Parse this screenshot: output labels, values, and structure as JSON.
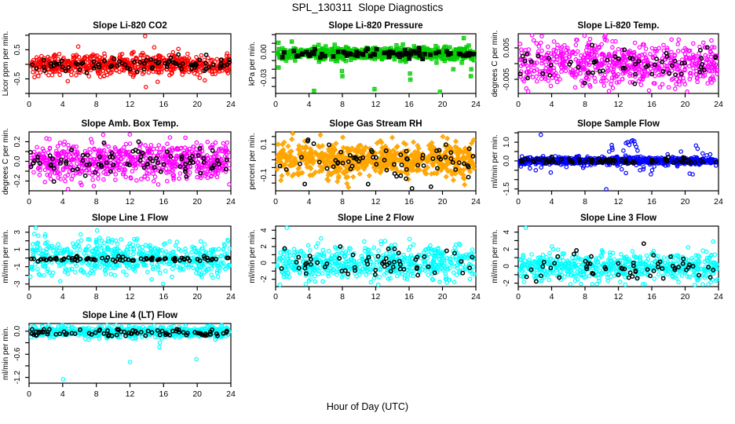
{
  "page": {
    "title": "SPL_130311  Slope Diagnostics",
    "xlabel": "Hour of Day (UTC)"
  },
  "axes": {
    "x_range": [
      0,
      24
    ],
    "x_ticks": [
      0,
      4,
      8,
      12,
      16,
      20,
      24
    ],
    "x_tick_labels": [
      "0",
      "4",
      "8",
      "12",
      "16",
      "20",
      "24"
    ]
  },
  "colors": {
    "background": "#ffffff",
    "axis": "#000000",
    "red": "#FF0000",
    "green": "#00CC00",
    "magenta": "#FF00FF",
    "orange": "#FFA500",
    "blue": "#0000FF",
    "cyan": "#00FFFF",
    "black": "#000000"
  },
  "chart_data": [
    {
      "id": "li820-co2",
      "type": "scatter",
      "grid": {
        "row": 0,
        "col": 0
      },
      "title": "Slope Li-820 CO2",
      "ylabel": "Licor ppm per min.",
      "x_range": [
        0,
        24
      ],
      "ylim": [
        -1.0,
        1.05
      ],
      "yticks": [
        -1,
        -0.5,
        0,
        0.5,
        1
      ],
      "ytick_labels": [
        {
          "v": 0.5,
          "t": "0.5"
        },
        {
          "v": -0.5,
          "t": "-0.5"
        }
      ],
      "series": [
        {
          "name": "primary",
          "color": "#FF0000",
          "marker": "open-circle",
          "n": 660,
          "mean": 0,
          "sd": 0.18,
          "seed": 101,
          "outliers": [
            [
              13.8,
              0.97
            ],
            [
              13.9,
              -0.78
            ],
            [
              15.3,
              -0.6
            ],
            [
              20.9,
              -0.55
            ],
            [
              4.6,
              -0.58
            ]
          ]
        },
        {
          "name": "overlay",
          "color": "#000000",
          "marker": "open-circle",
          "n": 85,
          "mean": 0,
          "sd": 0.12,
          "seed": 102,
          "outliers": []
        }
      ]
    },
    {
      "id": "li820-pressure",
      "type": "scatter",
      "grid": {
        "row": 0,
        "col": 1
      },
      "title": "Slope Li-820 Pressure",
      "ylabel": "kPa per min.",
      "x_range": [
        0,
        24
      ],
      "ylim": [
        -0.048,
        0.021
      ],
      "yticks": [
        -0.04,
        -0.03,
        -0.02,
        -0.01,
        0,
        0.01,
        0.02
      ],
      "ytick_labels": [
        {
          "v": 0,
          "t": "0.00"
        },
        {
          "v": -0.03,
          "t": "-0.03"
        }
      ],
      "series": [
        {
          "name": "primary",
          "color": "#00CC00",
          "marker": "square-plus",
          "n": 660,
          "mean": -0.002,
          "sd": 0.0035,
          "seed": 201,
          "outliers": [
            [
              0.35,
              -0.018
            ],
            [
              4.6,
              -0.045
            ],
            [
              7.95,
              -0.022
            ],
            [
              8.0,
              -0.028
            ],
            [
              11.85,
              -0.043
            ],
            [
              16.1,
              -0.025
            ],
            [
              16.15,
              -0.032
            ],
            [
              19.7,
              -0.046
            ],
            [
              21.3,
              -0.02
            ],
            [
              22.55,
              0.016
            ],
            [
              23.4,
              -0.028
            ],
            [
              23.45,
              -0.02
            ]
          ]
        },
        {
          "name": "overlay",
          "color": "#000000",
          "marker": "square-plus",
          "n": 85,
          "mean": -0.002,
          "sd": 0.0027,
          "seed": 202,
          "outliers": []
        }
      ]
    },
    {
      "id": "li820-temp",
      "type": "scatter",
      "grid": {
        "row": 0,
        "col": 2
      },
      "title": "Slope Li-820 Temp.",
      "ylabel": "degrees C per min.",
      "x_range": [
        0,
        24
      ],
      "ylim": [
        -0.0095,
        0.0095
      ],
      "yticks": [
        -0.005,
        0,
        0.005
      ],
      "ytick_labels": [
        {
          "v": 0.005,
          "t": "0.005"
        },
        {
          "v": -0.005,
          "t": "-0.005"
        }
      ],
      "series": [
        {
          "name": "primary",
          "color": "#FF00FF",
          "marker": "open-circle",
          "n": 660,
          "mean": 0,
          "sd": 0.0035,
          "seed": 301,
          "outliers": []
        },
        {
          "name": "overlay",
          "color": "#000000",
          "marker": "open-circle",
          "n": 60,
          "mean": 0,
          "sd": 0.003,
          "seed": 302,
          "outliers": []
        }
      ]
    },
    {
      "id": "amb-box-temp",
      "type": "scatter",
      "grid": {
        "row": 1,
        "col": 0
      },
      "title": "Slope Amb. Box Temp.",
      "ylabel": "degrees C per min.",
      "x_range": [
        0,
        24
      ],
      "ylim": [
        -0.3,
        0.3
      ],
      "yticks": [
        -0.2,
        -0.1,
        0,
        0.1,
        0.2
      ],
      "ytick_labels": [
        {
          "v": 0.2,
          "t": "0.2"
        },
        {
          "v": 0,
          "t": "0.0"
        },
        {
          "v": -0.2,
          "t": "-0.2"
        }
      ],
      "series": [
        {
          "name": "primary",
          "color": "#FF00FF",
          "marker": "open-circle",
          "n": 660,
          "mean": 0,
          "sd": 0.095,
          "seed": 401,
          "outliers": []
        },
        {
          "name": "overlay",
          "color": "#000000",
          "marker": "open-circle",
          "n": 85,
          "mean": 0,
          "sd": 0.085,
          "seed": 402,
          "outliers": []
        }
      ]
    },
    {
      "id": "gas-stream-rh",
      "type": "scatter",
      "grid": {
        "row": 1,
        "col": 1
      },
      "title": "Slope Gas Stream RH",
      "ylabel": "percent per min.",
      "x_range": [
        0,
        24
      ],
      "ylim": [
        -0.2,
        0.18
      ],
      "yticks": [
        -0.15,
        -0.1,
        -0.05,
        0,
        0.05,
        0.1,
        0.15
      ],
      "ytick_labels": [
        {
          "v": 0.1,
          "t": "0.1"
        },
        {
          "v": -0.1,
          "t": "-0.1"
        }
      ],
      "series": [
        {
          "name": "primary",
          "color": "#FFA500",
          "marker": "diamond-plus",
          "n": 640,
          "mean": 0,
          "sd": 0.055,
          "seed": 501,
          "outliers": []
        },
        {
          "name": "overlay",
          "color": "#000000",
          "marker": "open-circle",
          "n": 70,
          "mean": 0,
          "sd": 0.06,
          "seed": 502,
          "outliers": [
            [
              16.35,
              -0.185
            ],
            [
              3.85,
              0.12
            ],
            [
              3.9,
              0.13
            ]
          ]
        }
      ]
    },
    {
      "id": "sample-flow",
      "type": "scatter",
      "grid": {
        "row": 1,
        "col": 2
      },
      "title": "Slope Sample Flow",
      "ylabel": "ml/min per min.",
      "x_range": [
        0,
        24
      ],
      "ylim": [
        -1.6,
        1.55
      ],
      "yticks": [
        -1.5,
        -1,
        -0.5,
        0,
        0.5,
        1,
        1.5
      ],
      "ytick_labels": [
        {
          "v": 1,
          "t": "1.0"
        },
        {
          "v": 0,
          "t": "0.0"
        },
        {
          "v": -1.5,
          "t": "-1.5"
        }
      ],
      "series": [
        {
          "name": "primary",
          "color": "#0000FF",
          "marker": "open-circle",
          "n": 700,
          "mean": 0,
          "sd": 0.1,
          "seed": 601,
          "outliers": [
            [
              2.7,
              1.4
            ],
            [
              2.75,
              -0.35
            ],
            [
              0.3,
              -0.3
            ],
            [
              1.4,
              -0.4
            ],
            [
              2.1,
              -0.5
            ],
            [
              3.9,
              -0.62
            ],
            [
              10.55,
              -1.52
            ],
            [
              10.9,
              0.5
            ],
            [
              11.2,
              0.85
            ],
            [
              11.25,
              0.7
            ],
            [
              11.3,
              0.6
            ],
            [
              12.6,
              0.55
            ],
            [
              12.9,
              0.95
            ],
            [
              13.1,
              1.0
            ],
            [
              13.3,
              0.85
            ],
            [
              13.55,
              1.05
            ],
            [
              13.7,
              1.1
            ],
            [
              13.9,
              1.05
            ],
            [
              14.0,
              0.9
            ],
            [
              14.15,
              0.75
            ],
            [
              14.3,
              0.55
            ],
            [
              12.4,
              -0.45
            ],
            [
              12.9,
              -0.65
            ],
            [
              14.6,
              -0.5
            ],
            [
              15.0,
              -0.45
            ],
            [
              15.9,
              -0.72
            ],
            [
              16.05,
              -0.5
            ],
            [
              16.3,
              -0.3
            ],
            [
              17.9,
              0.35
            ],
            [
              19.5,
              0.5
            ],
            [
              20.55,
              -0.68
            ],
            [
              20.9,
              -0.72
            ],
            [
              21.3,
              0.82
            ],
            [
              21.5,
              0.65
            ],
            [
              22.1,
              0.4
            ],
            [
              23.0,
              0.35
            ]
          ]
        },
        {
          "name": "overlay",
          "color": "#000000",
          "marker": "open-circle",
          "n": 85,
          "mean": 0,
          "sd": 0.08,
          "seed": 602,
          "outliers": []
        }
      ]
    },
    {
      "id": "line1-flow",
      "type": "scatter",
      "grid": {
        "row": 2,
        "col": 0
      },
      "title": "Slope Line 1 Flow",
      "ylabel": "ml/min per min.",
      "x_range": [
        0,
        24
      ],
      "ylim": [
        -3.3,
        3.7
      ],
      "yticks": [
        -3,
        -2,
        -1,
        0,
        1,
        2,
        3
      ],
      "ytick_labels": [
        {
          "v": 3,
          "t": "3"
        },
        {
          "v": 1,
          "t": "1"
        },
        {
          "v": -1,
          "t": "-1"
        },
        {
          "v": -3,
          "t": "-3"
        }
      ],
      "series": [
        {
          "name": "primary",
          "color": "#00FFFF",
          "marker": "open-circle",
          "n": 600,
          "mean": 0,
          "sd": 1.0,
          "seed": 701,
          "outliers": [
            [
              0.8,
              3.5
            ],
            [
              1.1,
              2.6
            ],
            [
              1.9,
              2.5
            ]
          ]
        },
        {
          "name": "overlay",
          "color": "#000000",
          "marker": "open-circle",
          "n": 85,
          "mean": -0.1,
          "sd": 0.13,
          "seed": 702,
          "outliers": []
        }
      ]
    },
    {
      "id": "line2-flow",
      "type": "scatter",
      "grid": {
        "row": 2,
        "col": 1
      },
      "title": "Slope Line 2 Flow",
      "ylabel": "ml/min per min.",
      "x_range": [
        0,
        24
      ],
      "ylim": [
        -2.9,
        4.5
      ],
      "yticks": [
        -2,
        -1,
        0,
        1,
        2,
        3,
        4
      ],
      "ytick_labels": [
        {
          "v": 4,
          "t": "4"
        },
        {
          "v": 2,
          "t": "2"
        },
        {
          "v": 0,
          "t": "0"
        },
        {
          "v": -2,
          "t": "-2"
        }
      ],
      "series": [
        {
          "name": "primary",
          "color": "#00FFFF",
          "marker": "open-circle",
          "n": 600,
          "mean": 0,
          "sd": 1.0,
          "seed": 801,
          "outliers": [
            [
              1.35,
              4.3
            ]
          ]
        },
        {
          "name": "overlay",
          "color": "#000000",
          "marker": "open-circle",
          "n": 60,
          "mean": 0,
          "sd": 1.0,
          "seed": 802,
          "outliers": []
        }
      ]
    },
    {
      "id": "line3-flow",
      "type": "scatter",
      "grid": {
        "row": 2,
        "col": 2
      },
      "title": "Slope Line 3 Flow",
      "ylabel": "ml/min per min.",
      "x_range": [
        0,
        24
      ],
      "ylim": [
        -2.4,
        4.7
      ],
      "yticks": [
        -2,
        -1,
        0,
        1,
        2,
        3,
        4
      ],
      "ytick_labels": [
        {
          "v": 4,
          "t": "4"
        },
        {
          "v": 2,
          "t": "2"
        },
        {
          "v": 0,
          "t": "0"
        },
        {
          "v": -2,
          "t": "-2"
        }
      ],
      "series": [
        {
          "name": "primary",
          "color": "#00FFFF",
          "marker": "open-circle",
          "n": 600,
          "mean": 0,
          "sd": 0.85,
          "seed": 901,
          "outliers": [
            [
              0.9,
              4.5
            ]
          ]
        },
        {
          "name": "overlay",
          "color": "#000000",
          "marker": "open-circle",
          "n": 60,
          "mean": -0.2,
          "sd": 0.85,
          "seed": 902,
          "outliers": []
        }
      ]
    },
    {
      "id": "line4-lt-flow",
      "type": "scatter",
      "grid": {
        "row": 3,
        "col": 0
      },
      "title": "Slope Line 4 (LT) Flow",
      "ylabel": "ml/min per min.",
      "x_range": [
        0,
        24
      ],
      "ylim": [
        -1.35,
        0.2
      ],
      "yticks": [
        -1.2,
        -0.9,
        -0.6,
        -0.3,
        0
      ],
      "ytick_labels": [
        {
          "v": 0,
          "t": "0.0"
        },
        {
          "v": -0.6,
          "t": "-0.6"
        },
        {
          "v": -1.2,
          "t": "-1.2"
        }
      ],
      "series": [
        {
          "name": "primary",
          "color": "#00FFFF",
          "marker": "open-circle",
          "n": 660,
          "mean": -0.02,
          "sd": 0.07,
          "seed": 1001,
          "outliers": [
            [
              4.05,
              -1.25
            ],
            [
              12.0,
              -0.8
            ],
            [
              19.9,
              -0.73
            ],
            [
              15.5,
              -0.42
            ],
            [
              15.55,
              -0.3
            ]
          ]
        },
        {
          "name": "overlay",
          "color": "#000000",
          "marker": "open-circle",
          "n": 85,
          "mean": -0.05,
          "sd": 0.05,
          "seed": 1002,
          "outliers": []
        }
      ]
    }
  ]
}
